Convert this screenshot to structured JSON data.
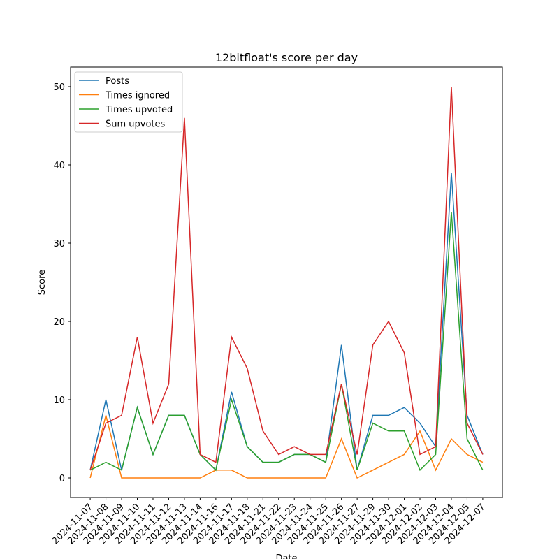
{
  "chart_data": {
    "type": "line",
    "title": "12bitfloat's score per day",
    "xlabel": "Date",
    "ylabel": "Score",
    "categories": [
      "2024-11-07",
      "2024-11-08",
      "2024-11-09",
      "2024-11-10",
      "2024-11-11",
      "2024-11-12",
      "2024-11-13",
      "2024-11-14",
      "2024-11-16",
      "2024-11-17",
      "2024-11-18",
      "2024-11-21",
      "2024-11-22",
      "2024-11-23",
      "2024-11-24",
      "2024-11-25",
      "2024-11-26",
      "2024-11-27",
      "2024-11-29",
      "2024-11-30",
      "2024-12-01",
      "2024-12-02",
      "2024-12-03",
      "2024-12-04",
      "2024-12-05",
      "2024-12-07"
    ],
    "series": [
      {
        "name": "Posts",
        "color": "#1f77b4",
        "values": [
          1,
          10,
          1,
          9,
          3,
          8,
          8,
          3,
          1,
          11,
          4,
          2,
          2,
          3,
          3,
          2,
          17,
          1,
          8,
          8,
          9,
          7,
          4,
          39,
          8,
          3
        ]
      },
      {
        "name": "Times ignored",
        "color": "#ff7f0e",
        "values": [
          0,
          8,
          0,
          0,
          0,
          0,
          0,
          0,
          1,
          1,
          0,
          0,
          0,
          0,
          0,
          0,
          5,
          0,
          1,
          2,
          3,
          6,
          1,
          5,
          3,
          2
        ]
      },
      {
        "name": "Times upvoted",
        "color": "#2ca02c",
        "values": [
          1,
          2,
          1,
          9,
          3,
          8,
          8,
          3,
          1,
          10,
          4,
          2,
          2,
          3,
          3,
          2,
          12,
          1,
          7,
          6,
          6,
          1,
          3,
          34,
          5,
          1
        ]
      },
      {
        "name": "Sum upvotes",
        "color": "#d62728",
        "values": [
          1,
          7,
          8,
          18,
          7,
          12,
          46,
          3,
          2,
          18,
          14,
          6,
          3,
          4,
          3,
          3,
          12,
          3,
          17,
          20,
          16,
          3,
          4,
          50,
          7,
          3
        ]
      }
    ],
    "ylim": [
      -2.5,
      52.5
    ],
    "yticks": [
      0,
      10,
      20,
      30,
      40,
      50
    ],
    "legend": "upper left"
  }
}
